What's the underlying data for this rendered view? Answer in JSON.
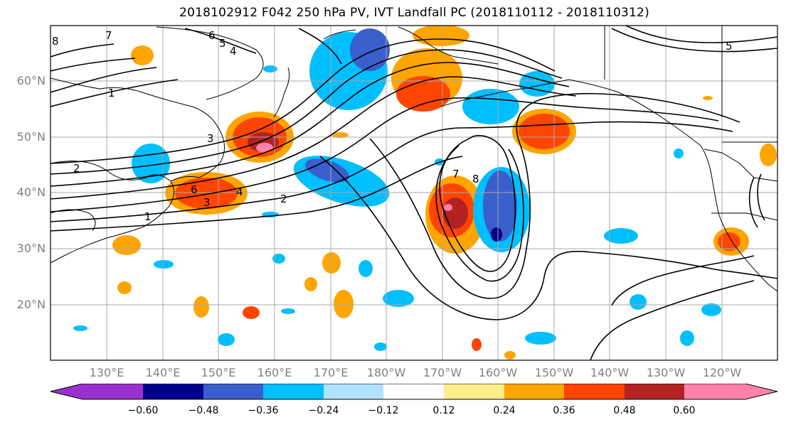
{
  "title": "2018102912 F042 250 hPa PV, IVT Landfall PC (2018110112 - 2018110312)",
  "lat_labels": [
    "60°N",
    "50°N",
    "40°N",
    "30°N",
    "20°N"
  ],
  "lon_labels": [
    "130°E",
    "140°E",
    "150°E",
    "160°E",
    "170°E",
    "180°W",
    "170°W",
    "160°W",
    "150°W",
    "140°W",
    "130°W",
    "120°W"
  ],
  "colorbar": {
    "ticks": [
      "−0.60",
      "−0.48",
      "−0.36",
      "−0.24",
      "−0.12",
      "0.12",
      "0.24",
      "0.36",
      "0.48",
      "0.60"
    ],
    "colors": [
      "#9932cc",
      "#00008b",
      "#3a5fcd",
      "#00bfff",
      "#b0e2ff",
      "#ffffff",
      "#ffec8b",
      "#ffa500",
      "#ff4500",
      "#b22222",
      "#ff82ab"
    ]
  },
  "contour_labels": [
    "8",
    "7",
    "6",
    "5",
    "4",
    "3",
    "2",
    "1",
    "8",
    "7",
    "6",
    "5",
    "4",
    "3",
    "2",
    "1"
  ],
  "colors": {
    "land_outline": "#000000",
    "grid": "#a9a9a9",
    "axis_label": "#808080"
  }
}
